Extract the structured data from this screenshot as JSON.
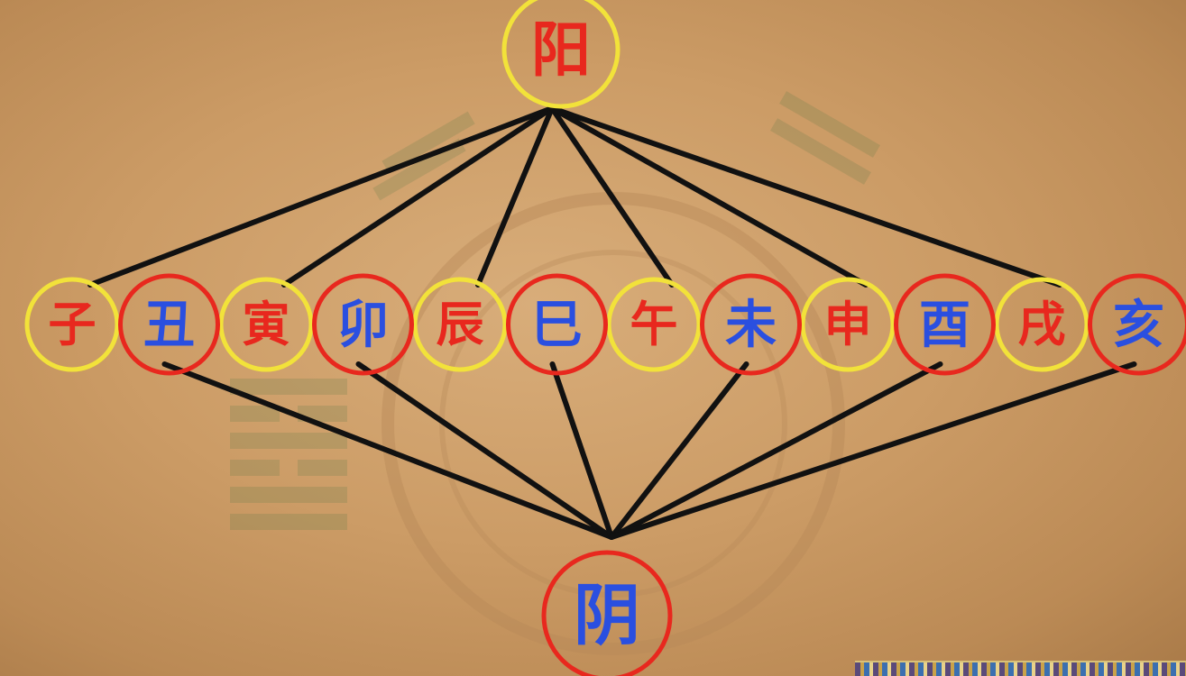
{
  "diagram": {
    "top_node": {
      "label": "阳",
      "ring_color": "#f2e23a",
      "text_color": "#e8281e"
    },
    "bottom_node": {
      "label": "阴",
      "ring_color": "#e8281e",
      "text_color": "#2a4fe0"
    },
    "branches": [
      {
        "label": "子",
        "polarity": "yang"
      },
      {
        "label": "丑",
        "polarity": "yin"
      },
      {
        "label": "寅",
        "polarity": "yang"
      },
      {
        "label": "卯",
        "polarity": "yin"
      },
      {
        "label": "辰",
        "polarity": "yang"
      },
      {
        "label": "巳",
        "polarity": "yin"
      },
      {
        "label": "午",
        "polarity": "yang"
      },
      {
        "label": "未",
        "polarity": "yin"
      },
      {
        "label": "申",
        "polarity": "yang"
      },
      {
        "label": "酉",
        "polarity": "yin"
      },
      {
        "label": "戌",
        "polarity": "yang"
      },
      {
        "label": "亥",
        "polarity": "yin"
      }
    ],
    "colors": {
      "yang_ring": "#f2e23a",
      "yang_text": "#e8281e",
      "yin_ring": "#e8281e",
      "yin_text": "#2a4fe0",
      "edge": "#111111"
    }
  }
}
